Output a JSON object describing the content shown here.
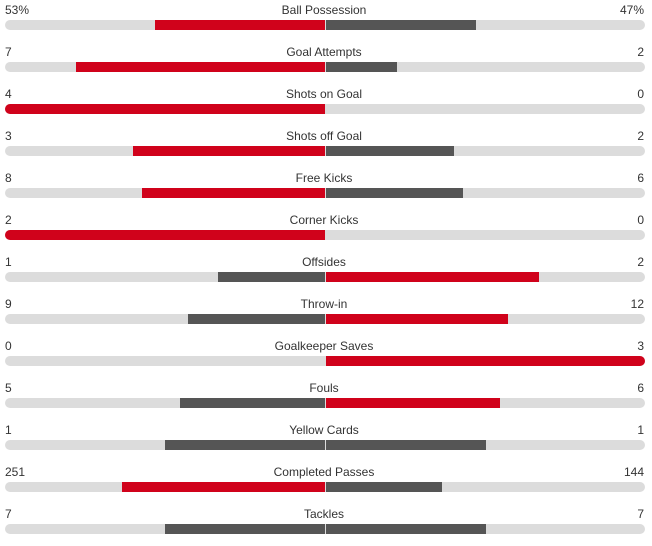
{
  "colors": {
    "leading": "#d0021b",
    "trailing": "#555555",
    "track": "#dcdcdc"
  },
  "stats": [
    {
      "name": "Ball Possession",
      "home": "53%",
      "away": "47%",
      "home_value": 53,
      "away_value": 47,
      "max": 100
    },
    {
      "name": "Goal Attempts",
      "home": "7",
      "away": "2",
      "home_value": 7,
      "away_value": 2,
      "max": 9
    },
    {
      "name": "Shots on Goal",
      "home": "4",
      "away": "0",
      "home_value": 4,
      "away_value": 0,
      "max": 4
    },
    {
      "name": "Shots off Goal",
      "home": "3",
      "away": "2",
      "home_value": 3,
      "away_value": 2,
      "max": 5
    },
    {
      "name": "Free Kicks",
      "home": "8",
      "away": "6",
      "home_value": 8,
      "away_value": 6,
      "max": 14
    },
    {
      "name": "Corner Kicks",
      "home": "2",
      "away": "0",
      "home_value": 2,
      "away_value": 0,
      "max": 2
    },
    {
      "name": "Offsides",
      "home": "1",
      "away": "2",
      "home_value": 1,
      "away_value": 2,
      "max": 3
    },
    {
      "name": "Throw-in",
      "home": "9",
      "away": "12",
      "home_value": 9,
      "away_value": 12,
      "max": 21
    },
    {
      "name": "Goalkeeper Saves",
      "home": "0",
      "away": "3",
      "home_value": 0,
      "away_value": 3,
      "max": 3
    },
    {
      "name": "Fouls",
      "home": "5",
      "away": "6",
      "home_value": 5,
      "away_value": 6,
      "max": 11
    },
    {
      "name": "Yellow Cards",
      "home": "1",
      "away": "1",
      "home_value": 1,
      "away_value": 1,
      "max": 2
    },
    {
      "name": "Completed Passes",
      "home": "251",
      "away": "144",
      "home_value": 251,
      "away_value": 144,
      "max": 395
    },
    {
      "name": "Tackles",
      "home": "7",
      "away": "7",
      "home_value": 7,
      "away_value": 7,
      "max": 14
    }
  ]
}
